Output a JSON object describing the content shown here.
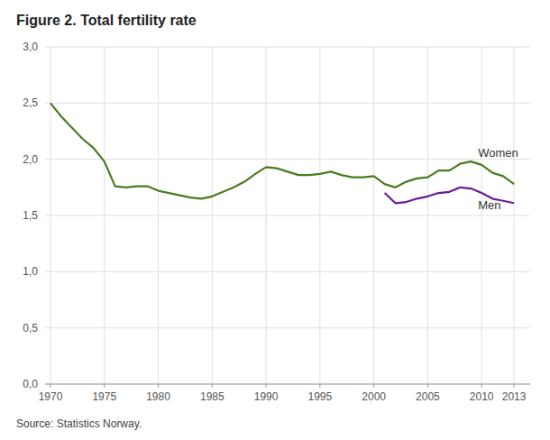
{
  "chart_data": {
    "type": "line",
    "title": "Figure 2. Total fertility rate",
    "annotations": [
      "Source: Statistics Norway."
    ],
    "x": [
      1970,
      1971,
      1972,
      1973,
      1974,
      1975,
      1976,
      1977,
      1978,
      1979,
      1980,
      1981,
      1982,
      1983,
      1984,
      1985,
      1986,
      1987,
      1988,
      1989,
      1990,
      1991,
      1992,
      1993,
      1994,
      1995,
      1996,
      1997,
      1998,
      1999,
      2000,
      2001,
      2002,
      2003,
      2004,
      2005,
      2006,
      2007,
      2008,
      2009,
      2010,
      2011,
      2012,
      2013
    ],
    "series": [
      {
        "name": "Women",
        "color": "#4a7c1f",
        "values": [
          2.5,
          2.38,
          2.28,
          2.18,
          2.1,
          1.98,
          1.76,
          1.75,
          1.76,
          1.76,
          1.72,
          1.7,
          1.68,
          1.66,
          1.65,
          1.67,
          1.71,
          1.75,
          1.8,
          1.87,
          1.93,
          1.92,
          1.89,
          1.86,
          1.86,
          1.87,
          1.89,
          1.86,
          1.84,
          1.84,
          1.85,
          1.78,
          1.75,
          1.8,
          1.83,
          1.84,
          1.9,
          1.9,
          1.96,
          1.98,
          1.95,
          1.88,
          1.85,
          1.78
        ]
      },
      {
        "name": "Men",
        "color": "#6a1a9a",
        "values": [
          null,
          null,
          null,
          null,
          null,
          null,
          null,
          null,
          null,
          null,
          null,
          null,
          null,
          null,
          null,
          null,
          null,
          null,
          null,
          null,
          null,
          null,
          null,
          null,
          null,
          null,
          null,
          null,
          null,
          null,
          null,
          1.7,
          1.61,
          1.62,
          1.65,
          1.67,
          1.7,
          1.71,
          1.75,
          1.74,
          1.7,
          1.65,
          1.63,
          1.61
        ]
      }
    ],
    "xlim": [
      1969.5,
      2014.5
    ],
    "xticks": [
      1970,
      1975,
      1980,
      1985,
      1990,
      1995,
      2000,
      2005,
      2010,
      2013
    ],
    "ylim": [
      0.0,
      3.0
    ],
    "yticks": [
      {
        "value": 0.0,
        "label": "0,0"
      },
      {
        "value": 0.5,
        "label": "0,5"
      },
      {
        "value": 1.0,
        "label": "1,0"
      },
      {
        "value": 1.5,
        "label": "1,5"
      },
      {
        "value": 2.0,
        "label": "2,0"
      },
      {
        "value": 2.5,
        "label": "2,5"
      },
      {
        "value": 3.0,
        "label": "3,0"
      }
    ],
    "grid": true
  }
}
